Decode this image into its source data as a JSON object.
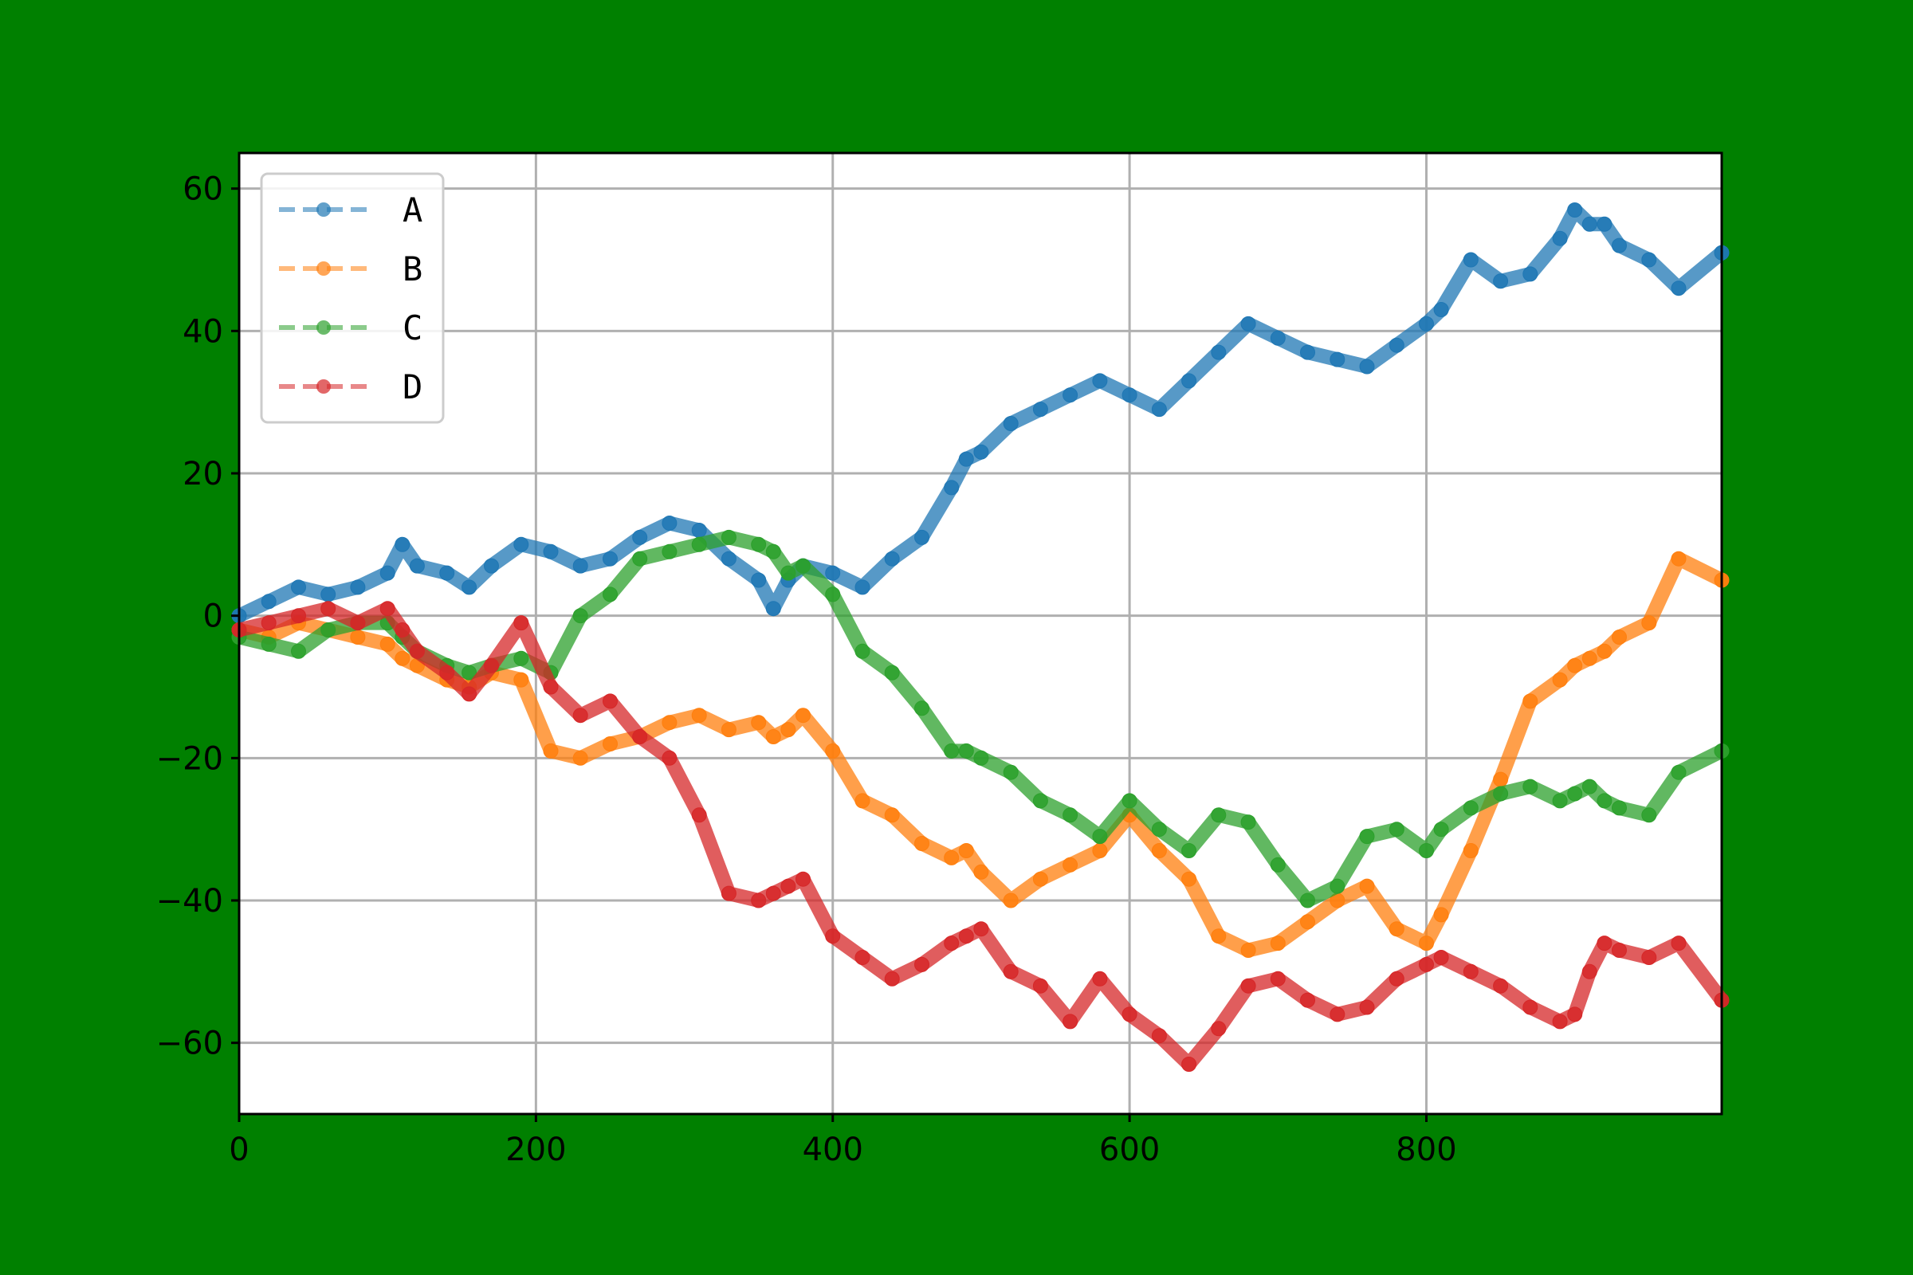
{
  "chart_data": {
    "type": "line",
    "title": "",
    "xlabel": "",
    "ylabel": "",
    "xlim": [
      0,
      999
    ],
    "ylim": [
      -70,
      65
    ],
    "grid": true,
    "background_color": "#008000",
    "plot_background": "#ffffff",
    "legend": {
      "position": "upper-left",
      "style": "dashed line with circle markers"
    },
    "x_ticks": [
      0,
      200,
      400,
      600,
      800
    ],
    "x_tick_labels": [
      "0",
      "200",
      "400",
      "600",
      "800"
    ],
    "y_ticks": [
      60,
      40,
      20,
      0,
      -20,
      -40,
      -60
    ],
    "y_tick_labels": [
      "60",
      "40",
      "20",
      "0",
      "−20",
      "−40",
      "−60"
    ],
    "x": [
      0,
      20,
      40,
      60,
      80,
      100,
      110,
      120,
      140,
      155,
      170,
      190,
      210,
      230,
      250,
      270,
      290,
      310,
      330,
      350,
      360,
      370,
      380,
      400,
      420,
      440,
      460,
      480,
      490,
      500,
      520,
      540,
      560,
      580,
      600,
      620,
      640,
      660,
      680,
      700,
      720,
      740,
      760,
      780,
      800,
      810,
      830,
      850,
      870,
      890,
      900,
      910,
      920,
      930,
      950,
      970,
      999
    ],
    "series": [
      {
        "name": "A",
        "color": "#1f77b4",
        "values": [
          0,
          2,
          4,
          3,
          4,
          6,
          10,
          7,
          6,
          4,
          7,
          10,
          9,
          7,
          8,
          11,
          13,
          12,
          8,
          5,
          1,
          5,
          7,
          6,
          4,
          8,
          11,
          18,
          22,
          23,
          27,
          29,
          31,
          33,
          31,
          29,
          33,
          37,
          41,
          39,
          37,
          36,
          35,
          38,
          41,
          43,
          50,
          47,
          48,
          53,
          57,
          55,
          55,
          52,
          50,
          46,
          51
        ]
      },
      {
        "name": "B",
        "color": "#ff7f0e",
        "values": [
          -2,
          -3,
          -1,
          -2,
          -3,
          -4,
          -6,
          -7,
          -9,
          -10,
          -8,
          -9,
          -19,
          -20,
          -18,
          -17,
          -15,
          -14,
          -16,
          -15,
          -17,
          -16,
          -14,
          -19,
          -26,
          -28,
          -32,
          -34,
          -33,
          -36,
          -40,
          -37,
          -35,
          -33,
          -28,
          -33,
          -37,
          -45,
          -47,
          -46,
          -43,
          -40,
          -38,
          -44,
          -46,
          -42,
          -33,
          -23,
          -12,
          -9,
          -7,
          -6,
          -5,
          -3,
          -1,
          8,
          5
        ]
      },
      {
        "name": "C",
        "color": "#2ca02c",
        "values": [
          -3,
          -4,
          -5,
          -2,
          -1,
          -1,
          -3,
          -5,
          -7,
          -8,
          -7,
          -6,
          -8,
          0,
          3,
          8,
          9,
          10,
          11,
          10,
          9,
          6,
          7,
          3,
          -5,
          -8,
          -13,
          -19,
          -19,
          -20,
          -22,
          -26,
          -28,
          -31,
          -26,
          -30,
          -33,
          -28,
          -29,
          -35,
          -40,
          -38,
          -31,
          -30,
          -33,
          -30,
          -27,
          -25,
          -24,
          -26,
          -25,
          -24,
          -26,
          -27,
          -28,
          -22,
          -19
        ]
      },
      {
        "name": "D",
        "color": "#d62728",
        "values": [
          -2,
          -1,
          0,
          1,
          -1,
          1,
          -2,
          -5,
          -8,
          -11,
          -7,
          -1,
          -10,
          -14,
          -12,
          -17,
          -20,
          -28,
          -39,
          -40,
          -39,
          -38,
          -37,
          -45,
          -48,
          -51,
          -49,
          -46,
          -45,
          -44,
          -50,
          -52,
          -57,
          -51,
          -56,
          -59,
          -63,
          -58,
          -52,
          -51,
          -54,
          -56,
          -55,
          -51,
          -49,
          -48,
          -50,
          -52,
          -55,
          -57,
          -56,
          -50,
          -46,
          -47,
          -48,
          -46,
          -54
        ]
      }
    ]
  }
}
